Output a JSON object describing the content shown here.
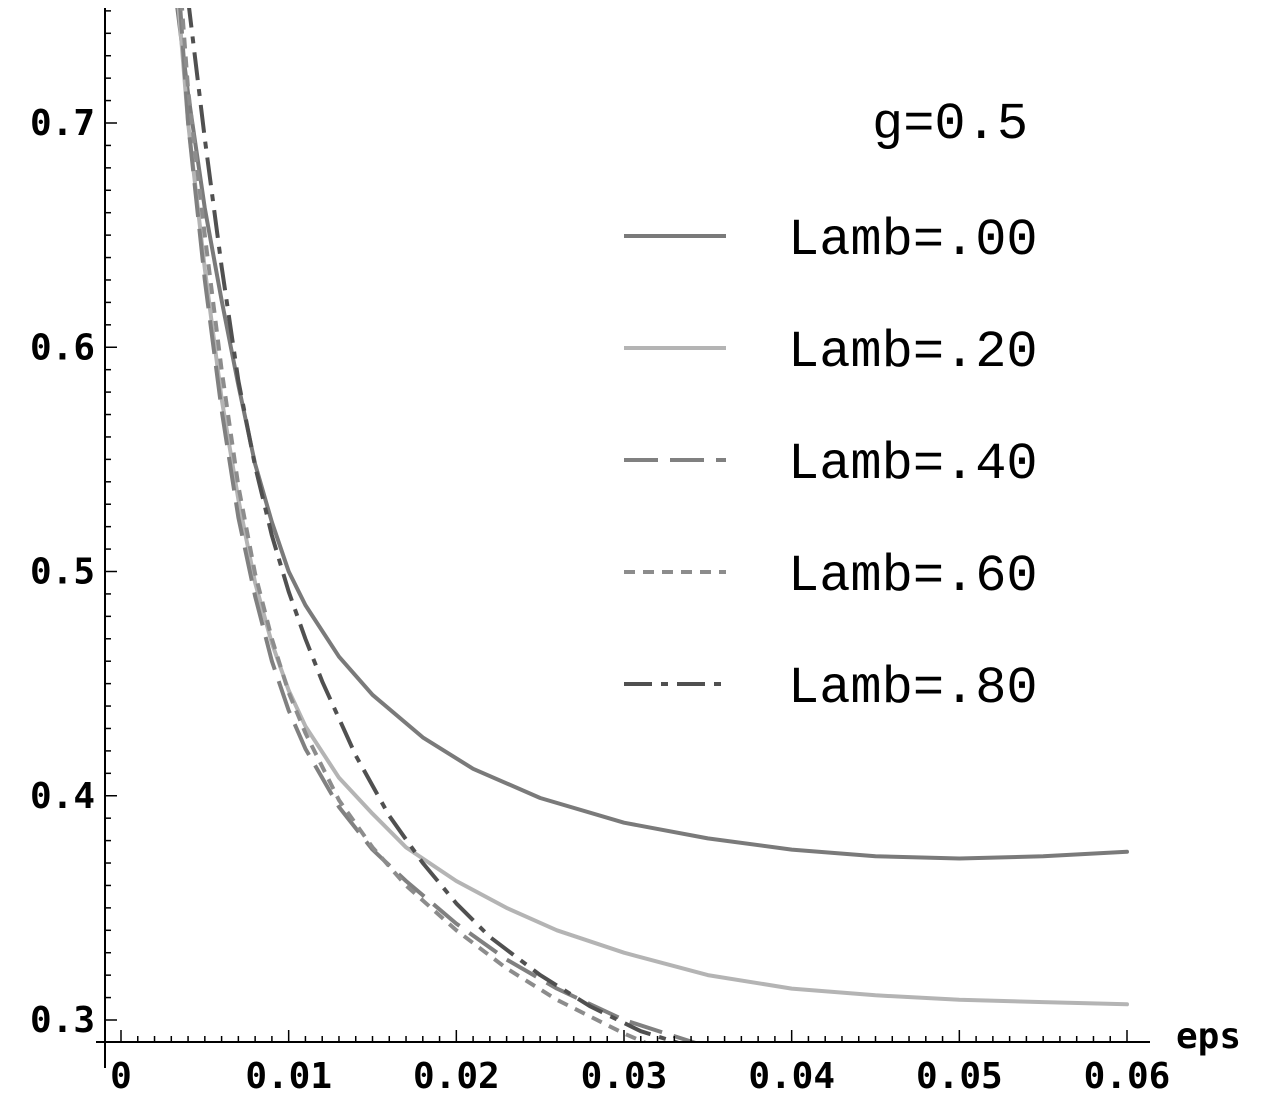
{
  "chart_data": {
    "type": "line",
    "title": "",
    "annotation": "g=0.5",
    "xlabel": "eps",
    "ylabel": "",
    "xlim": [
      0,
      0.06
    ],
    "ylim": [
      0.29,
      0.75
    ],
    "xticks": [
      0,
      0.01,
      0.02,
      0.03,
      0.04,
      0.05,
      0.06
    ],
    "xtick_labels": [
      "0",
      "0.01",
      "0.02",
      "0.03",
      "0.04",
      "0.05",
      "0.06"
    ],
    "yticks": [
      0.3,
      0.4,
      0.5,
      0.6,
      0.7
    ],
    "ytick_labels": [
      "0.3",
      "0.4",
      "0.5",
      "0.6",
      "0.7"
    ],
    "grid": false,
    "legend_position": "upper-right",
    "series": [
      {
        "name": "Lamb=.00",
        "color": "#7a7a7a",
        "style": "solid",
        "x": [
          0.0033,
          0.004,
          0.005,
          0.006,
          0.007,
          0.008,
          0.009,
          0.01,
          0.011,
          0.013,
          0.015,
          0.018,
          0.021,
          0.025,
          0.03,
          0.035,
          0.04,
          0.045,
          0.05,
          0.055,
          0.06
        ],
        "y": [
          0.755,
          0.713,
          0.662,
          0.621,
          0.583,
          0.548,
          0.522,
          0.5,
          0.485,
          0.462,
          0.445,
          0.426,
          0.412,
          0.399,
          0.388,
          0.381,
          0.376,
          0.373,
          0.372,
          0.373,
          0.375
        ]
      },
      {
        "name": "Lamb=.20",
        "color": "#b4b4b4",
        "style": "solid",
        "x": [
          0.0034,
          0.004,
          0.005,
          0.006,
          0.007,
          0.008,
          0.009,
          0.01,
          0.011,
          0.013,
          0.015,
          0.017,
          0.02,
          0.023,
          0.026,
          0.03,
          0.035,
          0.04,
          0.045,
          0.05,
          0.055,
          0.06
        ],
        "y": [
          0.755,
          0.7,
          0.635,
          0.577,
          0.532,
          0.495,
          0.468,
          0.447,
          0.431,
          0.408,
          0.392,
          0.377,
          0.362,
          0.35,
          0.34,
          0.33,
          0.32,
          0.314,
          0.311,
          0.309,
          0.308,
          0.307
        ]
      },
      {
        "name": "Lamb=.40",
        "color": "#808080",
        "style": "longdash",
        "x": [
          0.0035,
          0.004,
          0.005,
          0.006,
          0.007,
          0.008,
          0.009,
          0.01,
          0.011,
          0.013,
          0.015,
          0.017,
          0.02,
          0.023,
          0.026,
          0.03,
          0.035,
          0.04
        ],
        "y": [
          0.755,
          0.7,
          0.63,
          0.572,
          0.524,
          0.489,
          0.46,
          0.438,
          0.421,
          0.395,
          0.376,
          0.362,
          0.343,
          0.327,
          0.314,
          0.3,
          0.288,
          0.281
        ]
      },
      {
        "name": "Lamb=.60",
        "color": "#8c8c8c",
        "style": "shortdash",
        "x": [
          0.0036,
          0.004,
          0.005,
          0.006,
          0.007,
          0.008,
          0.009,
          0.01,
          0.011,
          0.013,
          0.015,
          0.017,
          0.02,
          0.023,
          0.026,
          0.03,
          0.034
        ],
        "y": [
          0.755,
          0.715,
          0.65,
          0.59,
          0.538,
          0.499,
          0.47,
          0.446,
          0.428,
          0.398,
          0.377,
          0.36,
          0.34,
          0.323,
          0.309,
          0.294,
          0.281
        ]
      },
      {
        "name": "Lamb=.80",
        "color": "#505050",
        "style": "dashdot",
        "x": [
          0.004,
          0.005,
          0.006,
          0.007,
          0.008,
          0.009,
          0.01,
          0.011,
          0.012,
          0.014,
          0.016,
          0.018,
          0.02,
          0.022,
          0.025,
          0.028,
          0.031,
          0.034,
          0.037,
          0.04
        ],
        "y": [
          0.755,
          0.693,
          0.636,
          0.585,
          0.547,
          0.516,
          0.491,
          0.47,
          0.451,
          0.418,
          0.391,
          0.37,
          0.352,
          0.337,
          0.32,
          0.306,
          0.295,
          0.288,
          0.283,
          0.279
        ]
      }
    ]
  }
}
